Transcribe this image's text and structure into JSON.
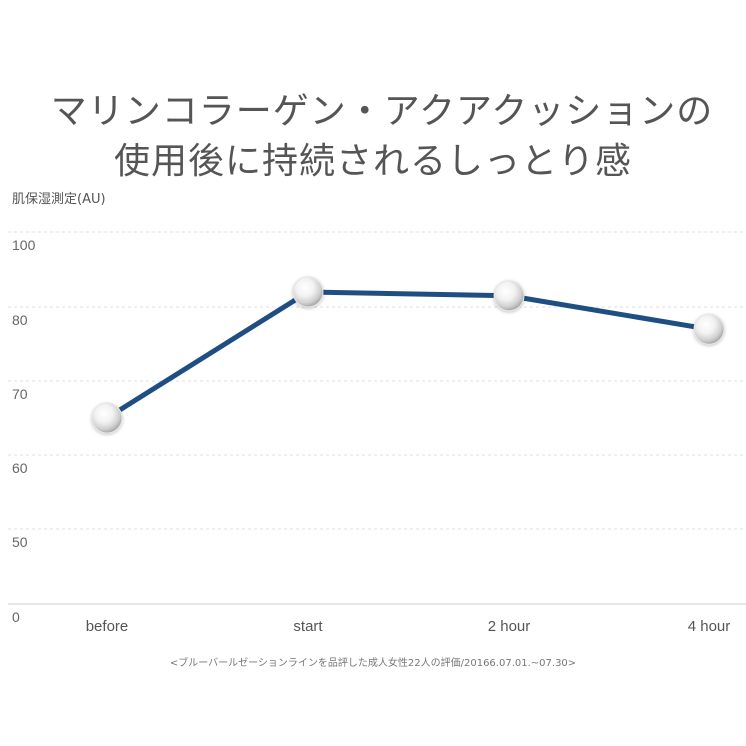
{
  "chart_data": {
    "type": "line",
    "title_line1": "マリンコラーゲン・アクアクッションの",
    "title_line2": "使用後に持続されるしっとり感",
    "ylabel": "肌保湿測定(AU)",
    "xlabel": "",
    "categories": [
      "before",
      "start",
      "2 hour",
      "4 hour"
    ],
    "y_ticks": [
      "100",
      "80",
      "70",
      "60",
      "50",
      "0"
    ],
    "series": [
      {
        "name": "肌保湿測定",
        "values": [
          65,
          84,
          83,
          77
        ],
        "color": "#1f4e82"
      }
    ],
    "grid": true,
    "footnote": "<ブルーバールゼーションラインを品評した成人女性22人の評価/20166.07.01.~07.30>"
  },
  "colors": {
    "line": "#1f4e82",
    "grid": "#dddddd",
    "axis": "#cccccc",
    "text": "#555555"
  }
}
